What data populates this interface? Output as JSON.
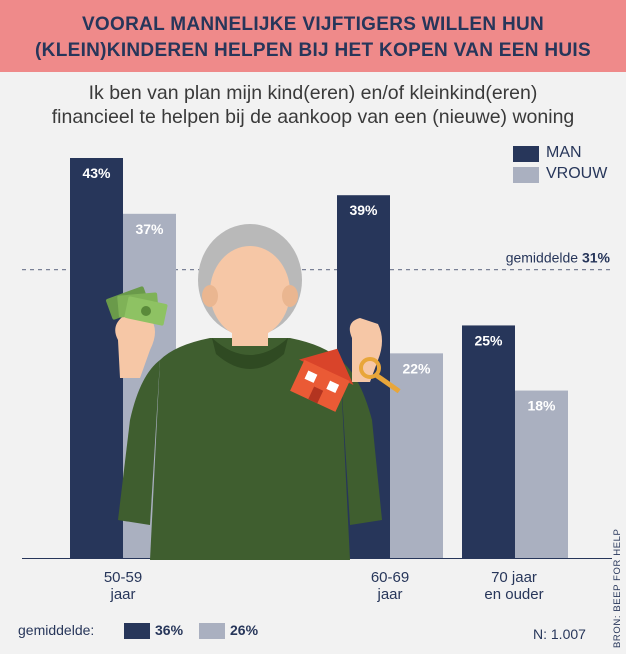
{
  "header": {
    "title_line1": "VOORAL MANNELIJKE VIJFTIGERS WILLEN HUN",
    "title_line2": "(KLEIN)KINDEREN HELPEN BIJ HET KOPEN VAN EEN HUIS",
    "subtitle_line1": "Ik ben van plan mijn kind(eren) en/of kleinkind(eren)",
    "subtitle_line2": "financieel te helpen bij de aankoop van een (nieuwe) woning"
  },
  "colors": {
    "man": "#27365a",
    "vrouw": "#aab0c0",
    "banner": "#ef8a8a"
  },
  "chart_data": {
    "type": "bar",
    "categories": [
      "50-59 jaar",
      "60-69 jaar",
      "70 jaar en ouder"
    ],
    "category_lines": [
      [
        "50-59",
        "jaar"
      ],
      [
        "60-69",
        "jaar"
      ],
      [
        "70 jaar",
        "en ouder"
      ]
    ],
    "series": [
      {
        "name": "MAN",
        "values": [
          43,
          39,
          25
        ],
        "labels": [
          "43%",
          "39%",
          "25%"
        ]
      },
      {
        "name": "VROUW",
        "values": [
          37,
          22,
          18
        ],
        "labels": [
          "37%",
          "22%",
          "18%"
        ]
      }
    ],
    "ylim": [
      0,
      43
    ],
    "reference_line": {
      "value": 31,
      "label": "gemiddelde",
      "value_label": "31%"
    },
    "legend_position": "top-right"
  },
  "footer": {
    "gemiddelde_label": "gemiddelde:",
    "man_avg": "36%",
    "vrouw_avg": "26%",
    "n_label": "N: 1.007",
    "source": "BRON: BEEP FOR HELP"
  }
}
